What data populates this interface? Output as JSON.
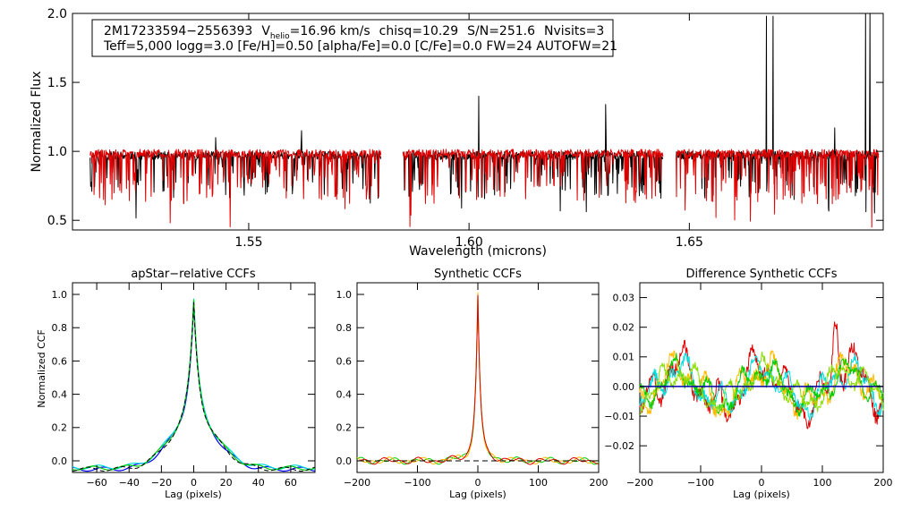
{
  "chart_data": [
    {
      "id": "spectrum",
      "type": "line",
      "title": "",
      "xlabel": "Wavelength (microns)",
      "ylabel": "Normalized Flux",
      "xlim": [
        1.51,
        1.694
      ],
      "ylim": [
        0.43,
        2.0
      ],
      "xticks": [
        1.55,
        1.6,
        1.65
      ],
      "xtick_labels": [
        "1.55",
        "1.60",
        "1.65"
      ],
      "yticks": [
        0.5,
        1.0,
        1.5,
        2.0
      ],
      "ytick_labels": [
        "0.5",
        "1.0",
        "1.5",
        "2.0"
      ],
      "annotation": {
        "star": "2M17233594−2556393",
        "v": "V",
        "v_sub": "helio",
        "vhelio": "=16.96 km/s",
        "chisq": "chisq=10.29",
        "sn": "S/N=251.6",
        "nvisits": "Nvisits=3",
        "line2": "Teff=5,000 logg=3.0 [Fe/H]=0.50 [alpha/Fe]=0.0 [C/Fe]=0.0 FW=24 AUTOFW=21"
      },
      "chips": [
        [
          1.514,
          1.58
        ],
        [
          1.585,
          1.644
        ],
        [
          1.647,
          1.693
        ]
      ],
      "series": [
        {
          "name": "observed",
          "color": "#000000",
          "seed": 11,
          "base": 0.97,
          "depth": 0.3,
          "spikes": [
            [
              1.5425,
              1.1
            ],
            [
              1.562,
              1.15
            ],
            [
              1.6022,
              1.4
            ],
            [
              1.631,
              1.34
            ],
            [
              1.6675,
              1.98
            ],
            [
              1.669,
              1.98
            ],
            [
              1.683,
              1.17
            ],
            [
              1.69,
              2.0
            ],
            [
              1.691,
              2.0
            ]
          ]
        },
        {
          "name": "model",
          "color": "#e00000",
          "seed": 29,
          "base": 0.985,
          "depth": 0.36,
          "spikes": []
        }
      ]
    },
    {
      "id": "apstar_ccf",
      "type": "line",
      "title": "apStar−relative CCFs",
      "xlabel": "Lag (pixels)",
      "ylabel": "Normalized CCF",
      "xlim": [
        -75,
        75
      ],
      "ylim": [
        -0.07,
        1.07
      ],
      "xticks": [
        -60,
        -40,
        -20,
        0,
        20,
        40,
        60
      ],
      "xtick_labels": [
        "−60",
        "−40",
        "−20",
        "0",
        "20",
        "40",
        "60"
      ],
      "yticks": [
        0.0,
        0.2,
        0.4,
        0.6,
        0.8,
        1.0
      ],
      "ytick_labels": [
        "0.0",
        "0.2",
        "0.4",
        "0.6",
        "0.8",
        "1.0"
      ],
      "series": [
        {
          "name": "ccf-1",
          "color": "#0000ff",
          "dash": false
        },
        {
          "name": "ccf-2",
          "color": "#00dddd",
          "dash": false
        },
        {
          "name": "ccf-3",
          "color": "#00cc00",
          "dash": false
        },
        {
          "name": "ccf-template",
          "color": "#000000",
          "dash": true
        }
      ]
    },
    {
      "id": "synthetic_ccf",
      "type": "line",
      "title": "Synthetic CCFs",
      "xlabel": "Lag (pixels)",
      "ylabel": "",
      "xlim": [
        -200,
        200
      ],
      "ylim": [
        -0.07,
        1.07
      ],
      "xticks": [
        -200,
        -100,
        0,
        100,
        200
      ],
      "xtick_labels": [
        "−200",
        "−100",
        "0",
        "100",
        "200"
      ],
      "yticks": [
        0.0,
        0.2,
        0.4,
        0.6,
        0.8,
        1.0
      ],
      "ytick_labels": [
        "0.0",
        "0.2",
        "0.4",
        "0.6",
        "0.8",
        "1.0"
      ],
      "series": [
        {
          "name": "synthetic-ccf-1",
          "color": "#00cc00"
        },
        {
          "name": "synthetic-ccf-2",
          "color": "#ffbb00"
        },
        {
          "name": "synthetic-ccf-3",
          "color": "#dd0000"
        },
        {
          "name": "synthetic-zero-line",
          "color": "#000000"
        }
      ]
    },
    {
      "id": "difference_ccf",
      "type": "line",
      "title": "Difference Synthetic CCFs",
      "xlabel": "Lag (pixels)",
      "ylabel": "",
      "xlim": [
        -200,
        200
      ],
      "ylim": [
        -0.029,
        0.035
      ],
      "xticks": [
        -200,
        -100,
        0,
        100,
        200
      ],
      "xtick_labels": [
        "−200",
        "−100",
        "0",
        "100",
        "200"
      ],
      "yticks": [
        -0.02,
        -0.01,
        0.0,
        0.01,
        0.02,
        0.03
      ],
      "ytick_labels": [
        "−0.02",
        "−0.01",
        "0.00",
        "0.01",
        "0.02",
        "0.03"
      ],
      "series": [
        {
          "name": "diff-1",
          "color": "#dd0000",
          "seed": 3,
          "amp": 0.013
        },
        {
          "name": "diff-2",
          "color": "#ffbb00",
          "seed": 7,
          "amp": 0.011
        },
        {
          "name": "diff-3",
          "color": "#00dddd",
          "seed": 13,
          "amp": 0.01
        },
        {
          "name": "diff-4",
          "color": "#00cc00",
          "seed": 17,
          "amp": 0.009
        },
        {
          "name": "diff-5",
          "color": "#88dd00",
          "seed": 21,
          "amp": 0.009
        },
        {
          "name": "zero-line",
          "color": "#0000aa",
          "flat": true
        }
      ]
    }
  ]
}
